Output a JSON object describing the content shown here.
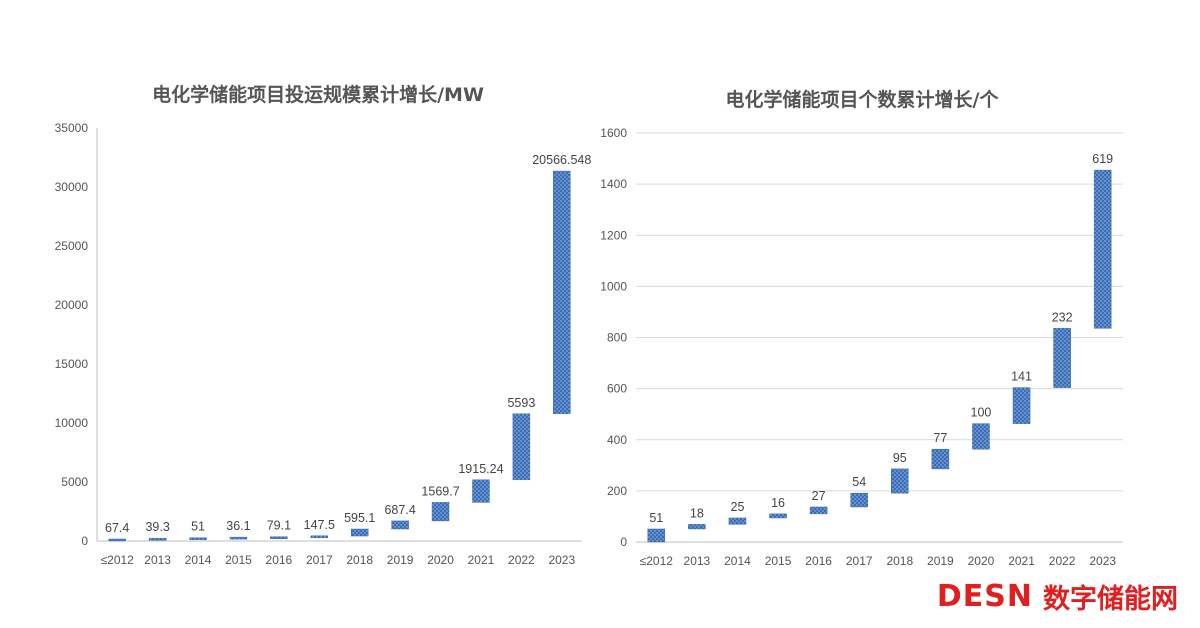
{
  "chart_data": [
    {
      "type": "bar",
      "subtype": "waterfall",
      "title": "电化学储能项目投运规模累计增长/MW",
      "categories": [
        "≤2012",
        "2013",
        "2014",
        "2015",
        "2016",
        "2017",
        "2018",
        "2019",
        "2020",
        "2021",
        "2022",
        "2023"
      ],
      "values": [
        67.4,
        39.3,
        51,
        36.1,
        79.1,
        147.5,
        595.1,
        687.4,
        1569.7,
        1915.24,
        5593,
        20566.548
      ],
      "labels": [
        "67.4",
        "39.3",
        "51",
        "36.1",
        "79.1",
        "147.5",
        "595.1",
        "687.4",
        "1569.7",
        "1915.24",
        "5593",
        "20566.548"
      ],
      "ylim": [
        0,
        35000
      ],
      "yticks": [
        "0",
        "5000",
        "10000",
        "15000",
        "20000",
        "25000",
        "30000",
        "35000"
      ],
      "grid": false,
      "color": "#3a6db5"
    },
    {
      "type": "bar",
      "subtype": "waterfall",
      "title": "电化学储能项目个数累计增长/个",
      "categories": [
        "≤2012",
        "2013",
        "2014",
        "2015",
        "2016",
        "2017",
        "2018",
        "2019",
        "2020",
        "2021",
        "2022",
        "2023"
      ],
      "values": [
        51,
        18,
        25,
        16,
        27,
        54,
        95,
        77,
        100,
        141,
        232,
        619
      ],
      "labels": [
        "51",
        "18",
        "25",
        "16",
        "27",
        "54",
        "95",
        "77",
        "100",
        "141",
        "232",
        "619"
      ],
      "ylim": [
        0,
        1600
      ],
      "yticks": [
        "0",
        "200",
        "400",
        "600",
        "800",
        "1000",
        "1200",
        "1400",
        "1600"
      ],
      "grid": true,
      "color": "#3a6db5"
    }
  ],
  "logo": {
    "mark": "DESN",
    "name": "数字储能网"
  }
}
